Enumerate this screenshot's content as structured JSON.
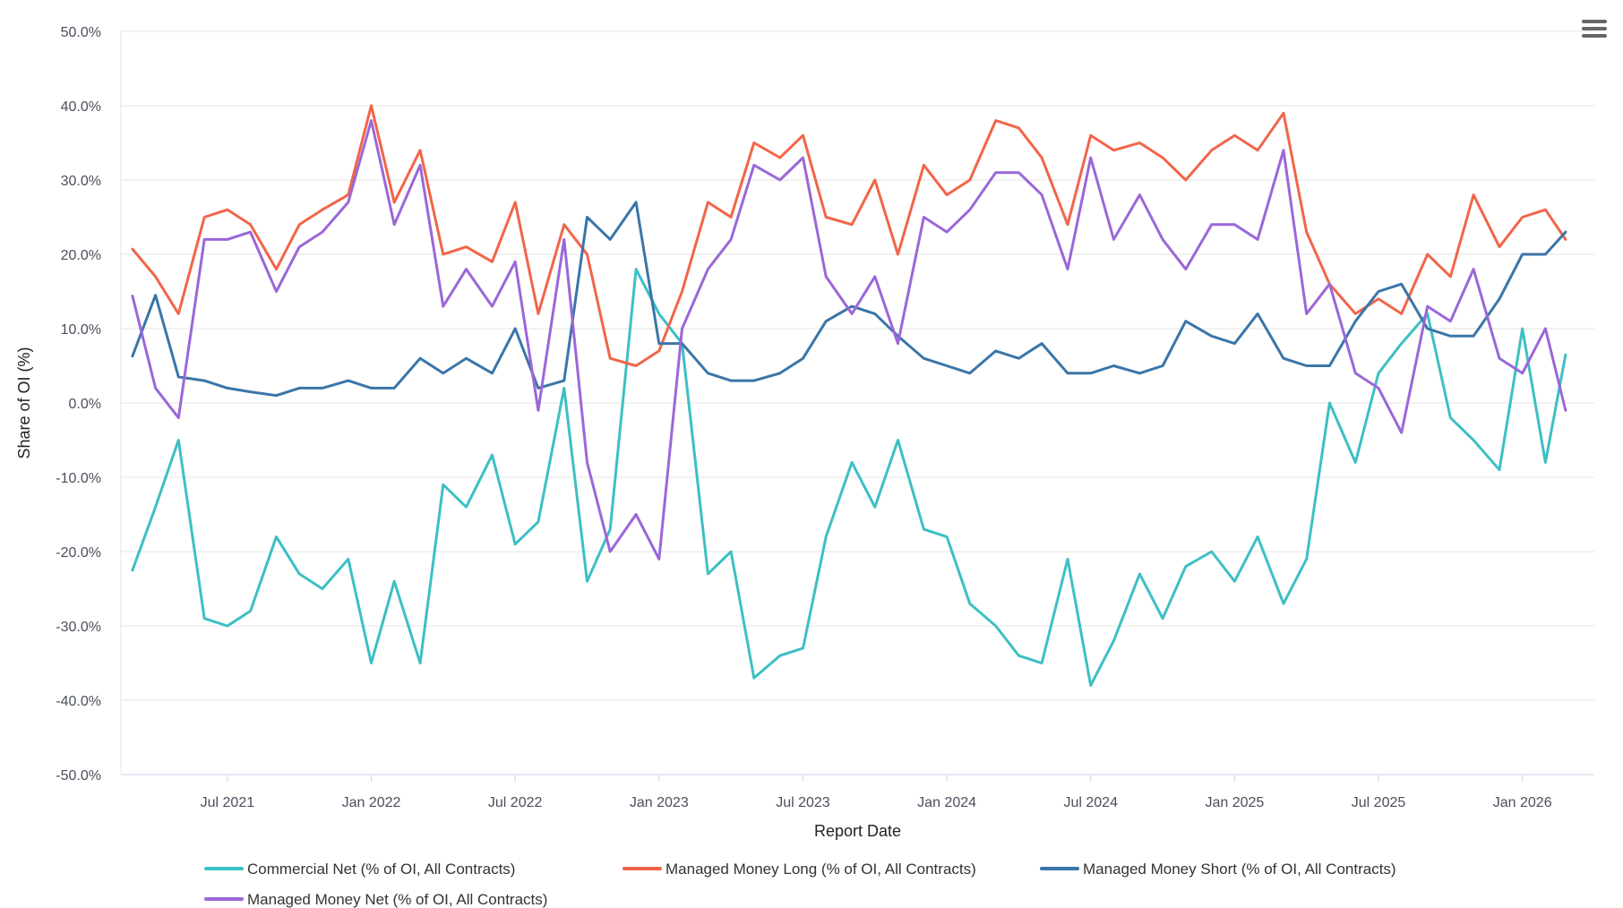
{
  "chart_data": {
    "type": "line",
    "title": "",
    "xlabel": "Report Date",
    "ylabel": "Share of OI (%)",
    "ylim": [
      -50,
      50
    ],
    "ytick_values": [
      -50,
      -40,
      -30,
      -20,
      -10,
      0,
      10,
      20,
      30,
      40,
      50
    ],
    "ytick_labels": [
      "-50.0%",
      "-40.0%",
      "-30.0%",
      "-20.0%",
      "-10.0%",
      "0.0%",
      "10.0%",
      "20.0%",
      "30.0%",
      "40.0%",
      "50.0%"
    ],
    "xlim": [
      2021.13,
      2026.25
    ],
    "xtick_values": [
      2021.5,
      2022.0,
      2022.5,
      2023.0,
      2023.5,
      2024.0,
      2024.5,
      2025.0,
      2025.5,
      2026.0
    ],
    "xtick_labels": [
      "Jul 2021",
      "Jan 2022",
      "Jul 2022",
      "Jan 2023",
      "Jul 2023",
      "Jan 2024",
      "Jul 2024",
      "Jan 2025",
      "Jul 2025",
      "Jan 2026"
    ],
    "legend_position": "bottom",
    "series": [
      {
        "name": "Commercial Net (% of OI, All Contracts)",
        "color": "#3dbfc4",
        "x": [
          2021.17,
          2021.25,
          2021.33,
          2021.42,
          2021.5,
          2021.58,
          2021.67,
          2021.75,
          2021.83,
          2021.92,
          2022.0,
          2022.08,
          2022.17,
          2022.25,
          2022.33,
          2022.42,
          2022.5,
          2022.58,
          2022.67,
          2022.75,
          2022.83,
          2022.92,
          2023.0,
          2023.08,
          2023.17,
          2023.25,
          2023.33,
          2023.42,
          2023.5,
          2023.58,
          2023.67,
          2023.75,
          2023.83,
          2023.92,
          2024.0,
          2024.08,
          2024.17,
          2024.25,
          2024.33,
          2024.42,
          2024.5,
          2024.58,
          2024.67,
          2024.75,
          2024.83,
          2024.92,
          2025.0,
          2025.08,
          2025.17,
          2025.25,
          2025.33,
          2025.42,
          2025.5,
          2025.58,
          2025.67,
          2025.75,
          2025.83,
          2025.92,
          2026.0,
          2026.08,
          2026.15
        ],
        "values": [
          -22.5,
          -14,
          -5,
          -29,
          -30,
          -28,
          -18,
          -23,
          -25,
          -21,
          -35,
          -24,
          -35,
          -11,
          -14,
          -7,
          -19,
          -16,
          2,
          -24,
          -17,
          18,
          12,
          8,
          -23,
          -20,
          -37,
          -34,
          -33,
          -18,
          -8,
          -14,
          -5,
          -17,
          -18,
          -27,
          -30,
          -34,
          -35,
          -21,
          -38,
          -32,
          -23,
          -29,
          -22,
          -20,
          -24,
          -18,
          -27,
          -21,
          0,
          -8,
          4,
          8,
          12,
          -2,
          -5,
          -9,
          10,
          -8,
          6.5
        ]
      },
      {
        "name": "Managed Money Long (% of OI, All Contracts)",
        "color": "#f26549",
        "x": [
          2021.17,
          2021.25,
          2021.33,
          2021.42,
          2021.5,
          2021.58,
          2021.67,
          2021.75,
          2021.83,
          2021.92,
          2022.0,
          2022.08,
          2022.17,
          2022.25,
          2022.33,
          2022.42,
          2022.5,
          2022.58,
          2022.67,
          2022.75,
          2022.83,
          2022.92,
          2023.0,
          2023.08,
          2023.17,
          2023.25,
          2023.33,
          2023.42,
          2023.5,
          2023.58,
          2023.67,
          2023.75,
          2023.83,
          2023.92,
          2024.0,
          2024.08,
          2024.17,
          2024.25,
          2024.33,
          2024.42,
          2024.5,
          2024.58,
          2024.67,
          2024.75,
          2024.83,
          2024.92,
          2025.0,
          2025.08,
          2025.17,
          2025.25,
          2025.33,
          2025.42,
          2025.5,
          2025.58,
          2025.67,
          2025.75,
          2025.83,
          2025.92,
          2026.0,
          2026.08,
          2026.15
        ],
        "values": [
          20.7,
          17,
          12,
          25,
          26,
          24,
          18,
          24,
          26,
          28,
          40,
          27,
          34,
          20,
          21,
          19,
          27,
          12,
          24,
          20,
          6,
          5,
          7,
          15,
          27,
          25,
          35,
          33,
          36,
          25,
          24,
          30,
          20,
          32,
          28,
          30,
          38,
          37,
          33,
          24,
          36,
          34,
          35,
          33,
          30,
          34,
          36,
          34,
          39,
          23,
          16,
          12,
          14,
          12,
          20,
          17,
          28,
          21,
          25,
          26,
          22
        ]
      },
      {
        "name": "Managed Money Short (% of OI, All Contracts)",
        "color": "#3a75a8",
        "x": [
          2021.17,
          2021.25,
          2021.33,
          2021.42,
          2021.5,
          2021.58,
          2021.67,
          2021.75,
          2021.83,
          2021.92,
          2022.0,
          2022.08,
          2022.17,
          2022.25,
          2022.33,
          2022.42,
          2022.5,
          2022.58,
          2022.67,
          2022.75,
          2022.83,
          2022.92,
          2023.0,
          2023.08,
          2023.17,
          2023.25,
          2023.33,
          2023.42,
          2023.5,
          2023.58,
          2023.67,
          2023.75,
          2023.83,
          2023.92,
          2024.0,
          2024.08,
          2024.17,
          2024.25,
          2024.33,
          2024.42,
          2024.5,
          2024.58,
          2024.67,
          2024.75,
          2024.83,
          2024.92,
          2025.0,
          2025.08,
          2025.17,
          2025.25,
          2025.33,
          2025.42,
          2025.5,
          2025.58,
          2025.67,
          2025.75,
          2025.83,
          2025.92,
          2026.0,
          2026.08,
          2026.15
        ],
        "values": [
          6.3,
          14.5,
          3.5,
          3,
          2,
          1.5,
          1,
          2,
          2,
          3,
          2,
          2,
          6,
          4,
          6,
          4,
          10,
          2,
          3,
          25,
          22,
          27,
          8,
          8,
          4,
          3,
          3,
          4,
          6,
          11,
          13,
          12,
          9,
          6,
          5,
          4,
          7,
          6,
          8,
          4,
          4,
          5,
          4,
          5,
          11,
          9,
          8,
          12,
          6,
          5,
          5,
          11,
          15,
          16,
          10,
          9,
          9,
          14,
          20,
          20,
          23
        ]
      },
      {
        "name": "Managed Money Net (% of OI, All Contracts)",
        "color": "#9b67d8",
        "x": [
          2021.17,
          2021.25,
          2021.33,
          2021.42,
          2021.5,
          2021.58,
          2021.67,
          2021.75,
          2021.83,
          2021.92,
          2022.0,
          2022.08,
          2022.17,
          2022.25,
          2022.33,
          2022.42,
          2022.5,
          2022.58,
          2022.67,
          2022.75,
          2022.83,
          2022.92,
          2023.0,
          2023.08,
          2023.17,
          2023.25,
          2023.33,
          2023.42,
          2023.5,
          2023.58,
          2023.67,
          2023.75,
          2023.83,
          2023.92,
          2024.0,
          2024.08,
          2024.17,
          2024.25,
          2024.33,
          2024.42,
          2024.5,
          2024.58,
          2024.67,
          2024.75,
          2024.83,
          2024.92,
          2025.0,
          2025.08,
          2025.17,
          2025.25,
          2025.33,
          2025.42,
          2025.5,
          2025.58,
          2025.67,
          2025.75,
          2025.83,
          2025.92,
          2026.0,
          2026.08,
          2026.15
        ],
        "values": [
          14.4,
          2,
          -2,
          22,
          22,
          23,
          15,
          21,
          23,
          27,
          38,
          24,
          32,
          13,
          18,
          13,
          19,
          -1,
          22,
          -8,
          -20,
          -15,
          -21,
          10,
          18,
          22,
          32,
          30,
          33,
          17,
          12,
          17,
          8,
          25,
          23,
          26,
          31,
          31,
          28,
          18,
          33,
          22,
          28,
          22,
          18,
          24,
          24,
          22,
          34,
          12,
          16,
          4,
          2,
          -4,
          13,
          11,
          18,
          6,
          4,
          10,
          -1
        ]
      }
    ]
  },
  "menu": {
    "icon": "hamburger-menu-icon"
  }
}
